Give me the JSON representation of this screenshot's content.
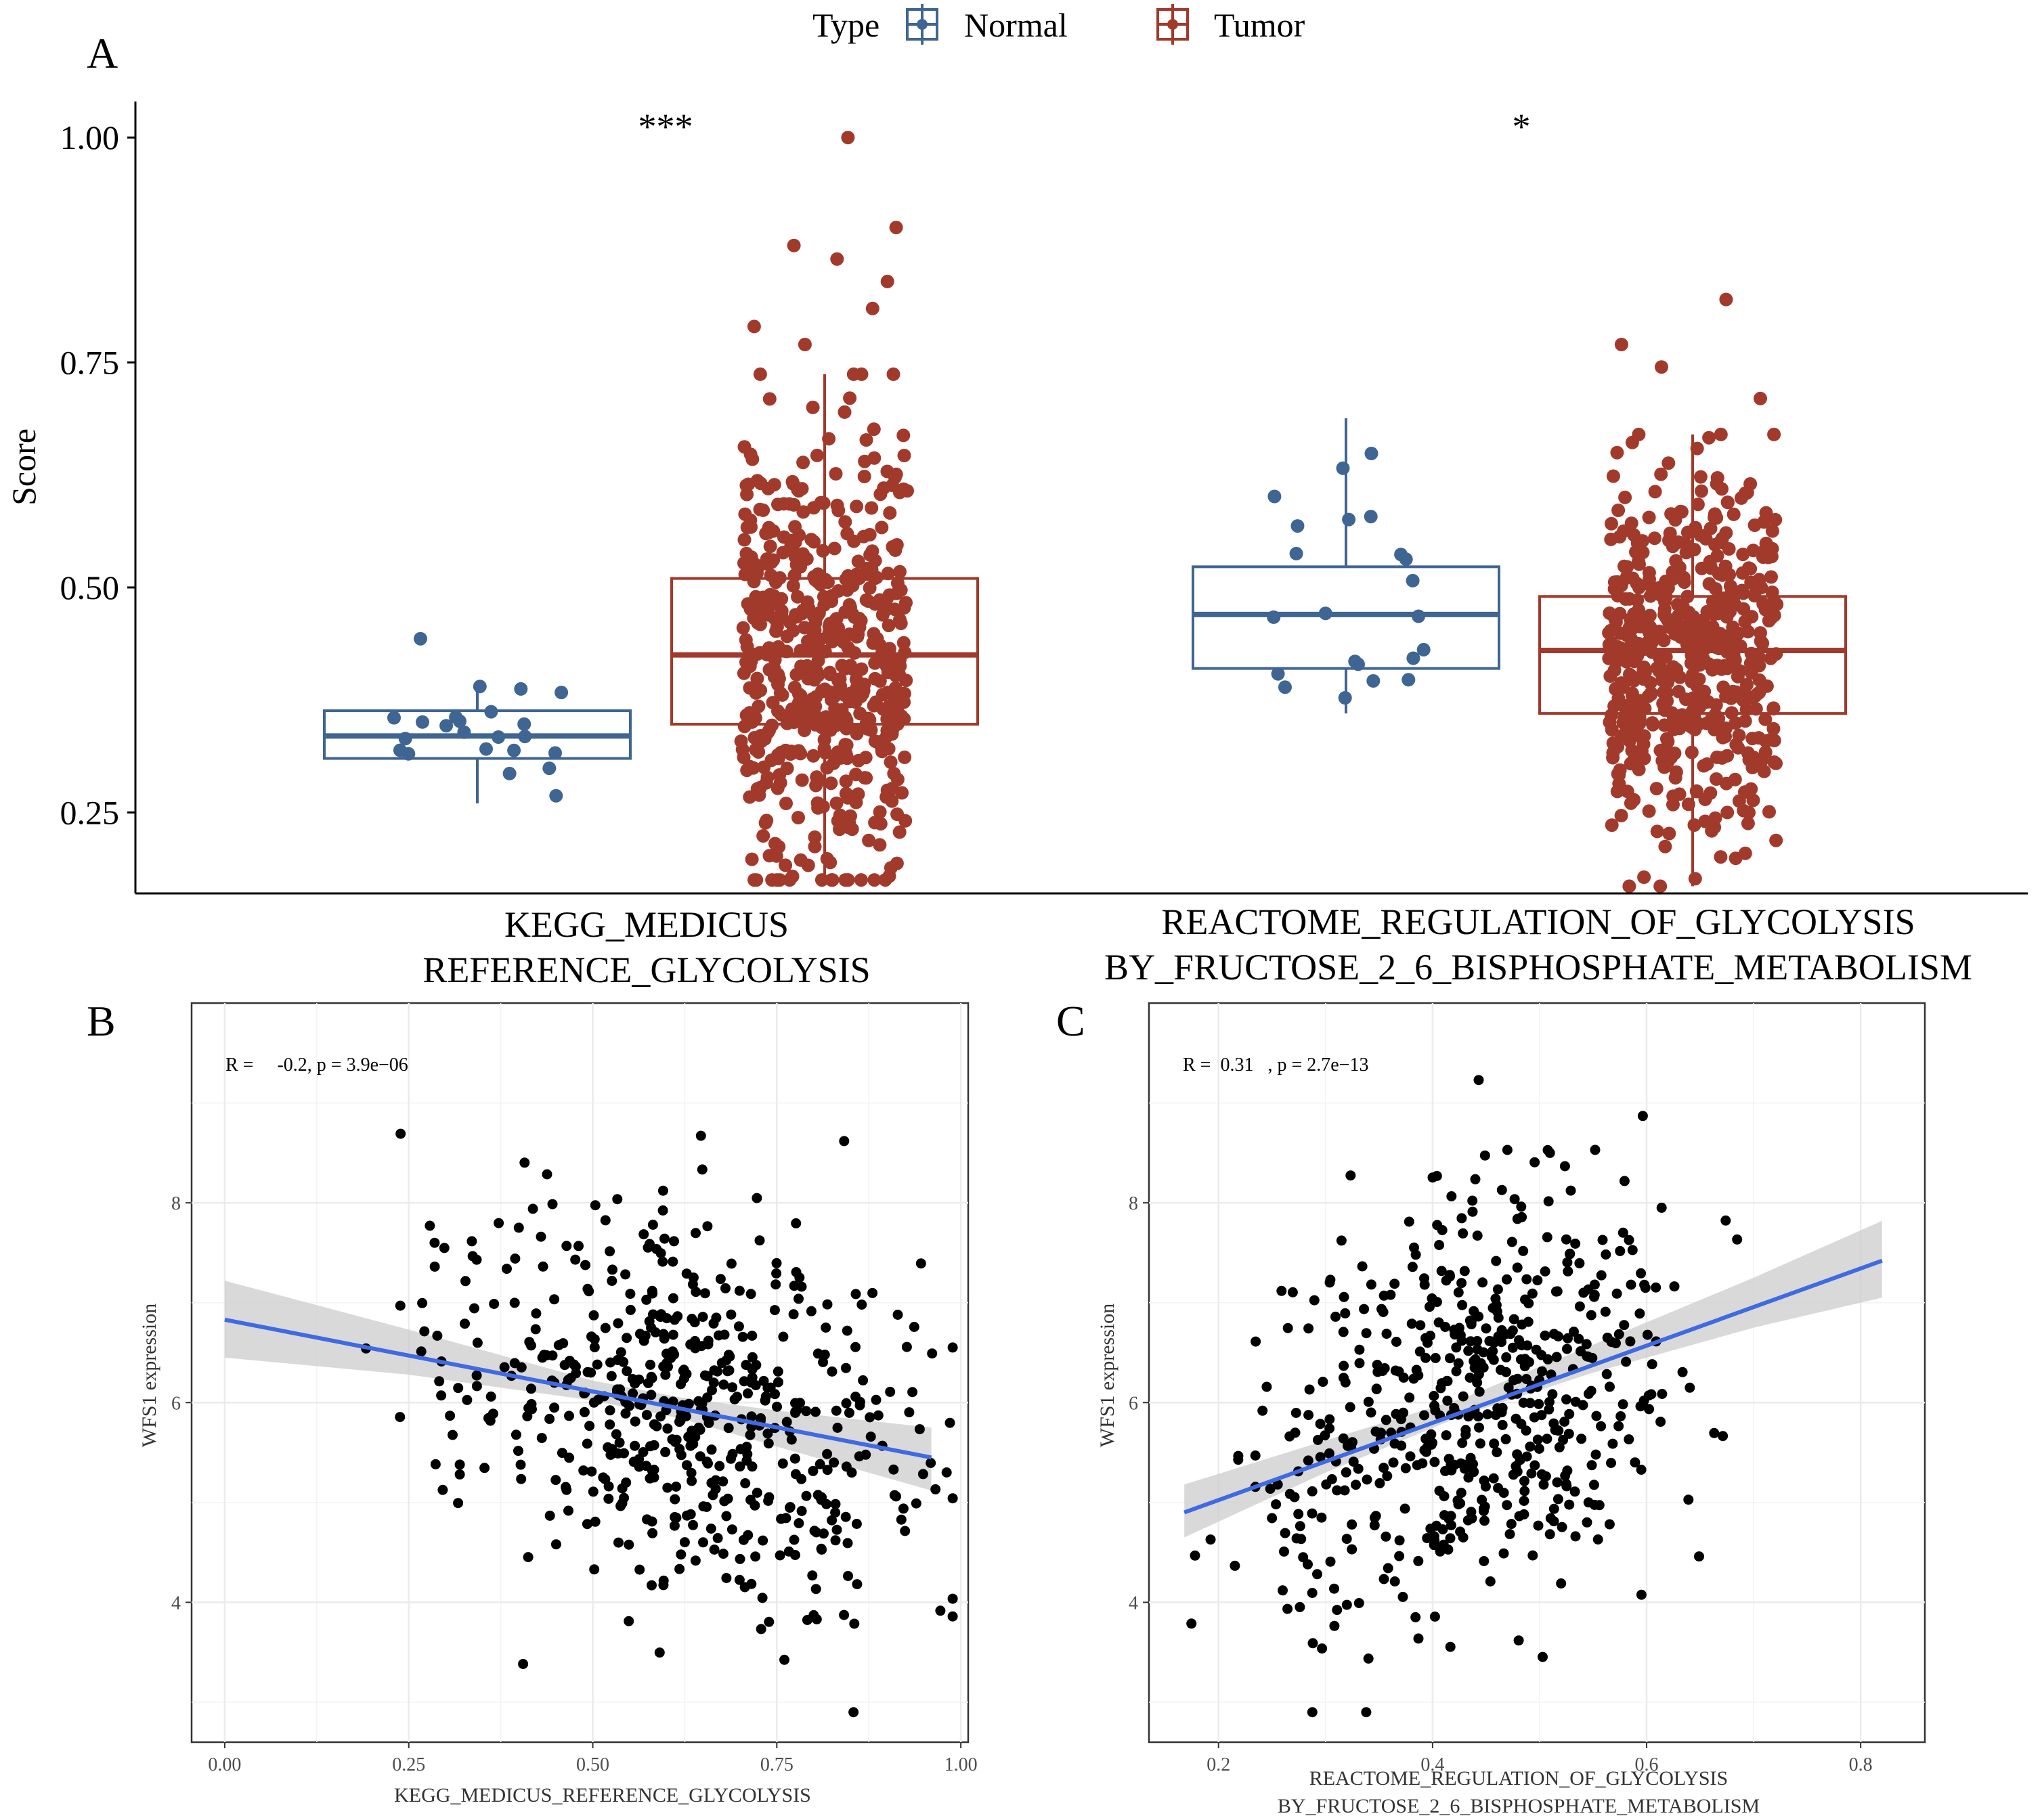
{
  "figure": {
    "legend": {
      "title": "Type",
      "items": [
        "Normal",
        "Tumor"
      ]
    },
    "colors": {
      "normal": "#3f6593",
      "tumor": "#a23a2c",
      "points": "#000000",
      "fit": "#3f6ae0",
      "band": "#cccccc",
      "grid": "#ebebeb"
    }
  },
  "chart_data": [
    {
      "panel": "A",
      "type": "box",
      "title": "",
      "ylabel": "Score",
      "ylim": [
        0.16,
        1.04
      ],
      "yticks": [
        0.25,
        0.5,
        0.75,
        1.0
      ],
      "ytick_labels": [
        "0.25",
        "0.50",
        "0.75",
        "1.00"
      ],
      "groups": [
        {
          "label_lines": [
            "KEGG_MEDICUS",
            "REFERENCE_GLYCOLYSIS"
          ],
          "significance": "***",
          "boxes": [
            {
              "type": "Normal",
              "q1": 0.31,
              "median": 0.335,
              "q3": 0.363,
              "whisker_low": 0.26,
              "whisker_high": 0.39,
              "n_points": 22,
              "outliers": [
                0.443
              ]
            },
            {
              "type": "Tumor",
              "q1": 0.348,
              "median": 0.425,
              "q3": 0.51,
              "whisker_low": 0.175,
              "whisker_high": 0.737,
              "n_points": 560,
              "outliers": [
                0.77,
                0.79,
                0.81,
                0.84,
                0.865,
                0.88,
                0.9,
                1.0
              ]
            }
          ]
        },
        {
          "label_lines": [
            "REACTOME_REGULATION_OF_GLYCOLYSIS",
            "BY_FRUCTOSE_2_6_BISPHOSPHATE_METABOLISM"
          ],
          "significance": "*",
          "boxes": [
            {
              "type": "Normal",
              "q1": 0.41,
              "median": 0.47,
              "q3": 0.523,
              "whisker_low": 0.36,
              "whisker_high": 0.688,
              "n_points": 22,
              "outliers": []
            },
            {
              "type": "Tumor",
              "q1": 0.36,
              "median": 0.43,
              "q3": 0.49,
              "whisker_low": 0.168,
              "whisker_high": 0.67,
              "n_points": 540,
              "outliers": [
                0.71,
                0.745,
                0.77,
                0.82
              ]
            }
          ]
        }
      ]
    },
    {
      "panel": "B",
      "type": "scatter",
      "annotation": "R =     -0.2, p = 3.9e−06",
      "xlabel_lines": [
        "KEGG_MEDICUS_REFERENCE_GLYCOLYSIS"
      ],
      "ylabel": "WFS1 expression",
      "xlim": [
        -0.045,
        1.01
      ],
      "ylim": [
        2.6,
        10.0
      ],
      "xticks": [
        0.0,
        0.25,
        0.5,
        0.75,
        1.0
      ],
      "xtick_labels": [
        "0.00",
        "0.25",
        "0.50",
        "0.75",
        "1.00"
      ],
      "yticks": [
        4,
        6,
        8
      ],
      "ytick_labels": [
        "4",
        "6",
        "8"
      ],
      "fit": {
        "x0": 0.0,
        "y0": 6.83,
        "x1": 0.96,
        "y1": 5.45
      },
      "ci": {
        "x": [
          0.0,
          0.25,
          0.5,
          0.62,
          0.75,
          0.96
        ],
        "lower": [
          6.45,
          6.28,
          6.02,
          5.84,
          5.56,
          5.12
        ],
        "upper": [
          7.22,
          6.73,
          6.22,
          6.05,
          5.92,
          5.75
        ]
      },
      "points": {
        "n": 560,
        "x_mean": 0.62,
        "x_sd": 0.17,
        "y_mean": 5.9,
        "y_sd": 1.05
      }
    },
    {
      "panel": "C",
      "type": "scatter",
      "annotation": "R =  0.31   , p = 2.7e−13",
      "xlabel_lines": [
        "REACTOME_REGULATION_OF_GLYCOLYSIS",
        "BY_FRUCTOSE_2_6_BISPHOSPHATE_METABOLISM"
      ],
      "ylabel": "WFS1 expression",
      "xlim": [
        0.135,
        0.86
      ],
      "ylim": [
        2.6,
        10.0
      ],
      "xticks": [
        0.2,
        0.4,
        0.6,
        0.8
      ],
      "xtick_labels": [
        "0.2",
        "0.4",
        "0.6",
        "0.8"
      ],
      "yticks": [
        4,
        6,
        8
      ],
      "ytick_labels": [
        "4",
        "6",
        "8"
      ],
      "fit": {
        "x0": 0.168,
        "y0": 4.9,
        "x1": 0.82,
        "y1": 7.42
      },
      "ci": {
        "x": [
          0.168,
          0.3,
          0.43,
          0.55,
          0.7,
          0.82
        ],
        "lower": [
          4.65,
          5.3,
          5.88,
          6.3,
          6.75,
          7.05
        ],
        "upper": [
          5.18,
          5.62,
          6.05,
          6.58,
          7.25,
          7.82
        ]
      },
      "points": {
        "n": 560,
        "x_mean": 0.43,
        "x_sd": 0.1,
        "y_mean": 5.9,
        "y_sd": 1.05
      }
    }
  ],
  "panel_letters": [
    "A",
    "B",
    "C"
  ]
}
